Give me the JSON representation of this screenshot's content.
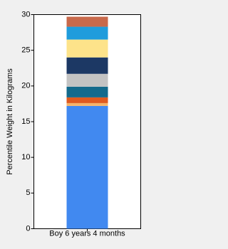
{
  "chart_data": {
    "type": "stacked_bar",
    "y_label": "Percentile Weight in Kilograms",
    "categories": [
      "Boy 6 years 4 months"
    ],
    "series": [
      {
        "color": "#4189f0",
        "values": [
          17.2
        ]
      },
      {
        "color": "#f5b36a",
        "values": [
          0.4
        ]
      },
      {
        "color": "#e05a1e",
        "values": [
          0.8
        ]
      },
      {
        "color": "#136a8c",
        "values": [
          1.5
        ]
      },
      {
        "color": "#c3c3c3",
        "values": [
          1.8
        ]
      },
      {
        "color": "#1c3864",
        "values": [
          2.3
        ]
      },
      {
        "color": "#fde38a",
        "values": [
          2.5
        ]
      },
      {
        "color": "#1f9cdc",
        "values": [
          1.8
        ]
      },
      {
        "color": "#c8694b",
        "values": [
          1.4
        ]
      }
    ],
    "ylim": [
      0,
      30
    ],
    "yticks": [
      0,
      5,
      10,
      15,
      20,
      25,
      30
    ],
    "grid": false
  }
}
